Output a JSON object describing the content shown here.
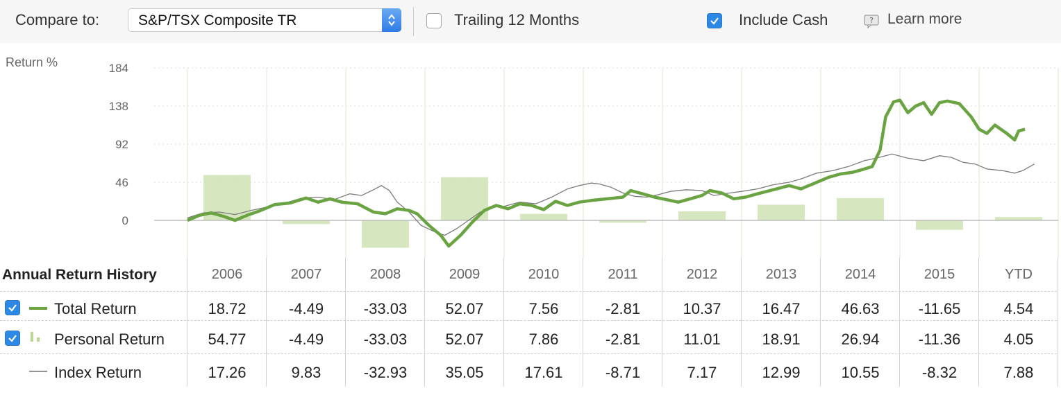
{
  "toolbar": {
    "compare_label": "Compare to:",
    "compare_value": "S&P/TSX Composite TR",
    "trailing_label": "Trailing 12 Months",
    "trailing_checked": false,
    "include_cash_label": "Include Cash",
    "include_cash_checked": true,
    "learn_more_label": "Learn more"
  },
  "chart_data": {
    "type": "line",
    "ylabel": "Return %",
    "yticks": [
      184,
      138,
      92,
      46,
      0
    ],
    "ylim": [
      -35,
      184
    ],
    "xlim": [
      2006,
      2016.7
    ],
    "grid": true,
    "colors": {
      "total": "#6aa342",
      "index": "#7a7a7a",
      "bars": "#cfe3b5"
    },
    "series": [
      {
        "name": "Total Return",
        "style": "thick green line",
        "points": [
          [
            2006.0,
            0
          ],
          [
            2006.15,
            6
          ],
          [
            2006.3,
            9
          ],
          [
            2006.45,
            5
          ],
          [
            2006.6,
            0
          ],
          [
            2006.75,
            6
          ],
          [
            2006.9,
            11
          ],
          [
            2007.1,
            19
          ],
          [
            2007.3,
            21
          ],
          [
            2007.5,
            27
          ],
          [
            2007.65,
            22
          ],
          [
            2007.8,
            26
          ],
          [
            2007.95,
            22
          ],
          [
            2008.15,
            20
          ],
          [
            2008.35,
            10
          ],
          [
            2008.5,
            8
          ],
          [
            2008.65,
            14
          ],
          [
            2008.8,
            12
          ],
          [
            2008.9,
            8
          ],
          [
            2009.05,
            -6
          ],
          [
            2009.2,
            -18
          ],
          [
            2009.3,
            -31
          ],
          [
            2009.45,
            -18
          ],
          [
            2009.6,
            -2
          ],
          [
            2009.75,
            12
          ],
          [
            2009.9,
            18
          ],
          [
            2010.05,
            14
          ],
          [
            2010.2,
            20
          ],
          [
            2010.35,
            18
          ],
          [
            2010.5,
            13
          ],
          [
            2010.65,
            23
          ],
          [
            2010.8,
            18
          ],
          [
            2010.95,
            22
          ],
          [
            2011.1,
            24
          ],
          [
            2011.3,
            26
          ],
          [
            2011.5,
            28
          ],
          [
            2011.6,
            36
          ],
          [
            2011.75,
            32
          ],
          [
            2011.9,
            28
          ],
          [
            2012.05,
            25
          ],
          [
            2012.2,
            22
          ],
          [
            2012.35,
            26
          ],
          [
            2012.5,
            30
          ],
          [
            2012.6,
            36
          ],
          [
            2012.75,
            33
          ],
          [
            2012.9,
            26
          ],
          [
            2013.05,
            28
          ],
          [
            2013.2,
            32
          ],
          [
            2013.4,
            37
          ],
          [
            2013.6,
            42
          ],
          [
            2013.75,
            38
          ],
          [
            2013.9,
            44
          ],
          [
            2014.1,
            52
          ],
          [
            2014.25,
            56
          ],
          [
            2014.4,
            58
          ],
          [
            2014.55,
            62
          ],
          [
            2014.65,
            65
          ],
          [
            2014.75,
            85
          ],
          [
            2014.82,
            125
          ],
          [
            2014.92,
            143
          ],
          [
            2015.0,
            145
          ],
          [
            2015.1,
            130
          ],
          [
            2015.2,
            138
          ],
          [
            2015.3,
            142
          ],
          [
            2015.4,
            128
          ],
          [
            2015.5,
            142
          ],
          [
            2015.6,
            144
          ],
          [
            2015.75,
            141
          ],
          [
            2015.9,
            125
          ],
          [
            2016.0,
            110
          ],
          [
            2016.1,
            105
          ],
          [
            2016.2,
            115
          ],
          [
            2016.35,
            105
          ],
          [
            2016.45,
            97
          ],
          [
            2016.5,
            108
          ],
          [
            2016.58,
            110
          ]
        ]
      },
      {
        "name": "Index Return",
        "style": "thin gray line",
        "points": [
          [
            2006.0,
            3
          ],
          [
            2006.2,
            9
          ],
          [
            2006.4,
            10
          ],
          [
            2006.6,
            7
          ],
          [
            2006.8,
            12
          ],
          [
            2006.95,
            15
          ],
          [
            2007.2,
            20
          ],
          [
            2007.45,
            27
          ],
          [
            2007.65,
            28
          ],
          [
            2007.85,
            25
          ],
          [
            2008.05,
            32
          ],
          [
            2008.2,
            30
          ],
          [
            2008.35,
            37
          ],
          [
            2008.45,
            42
          ],
          [
            2008.55,
            36
          ],
          [
            2008.65,
            22
          ],
          [
            2008.8,
            10
          ],
          [
            2008.95,
            -6
          ],
          [
            2009.15,
            -15
          ],
          [
            2009.25,
            -18
          ],
          [
            2009.4,
            -10
          ],
          [
            2009.55,
            0
          ],
          [
            2009.7,
            10
          ],
          [
            2009.85,
            16
          ],
          [
            2010.0,
            17
          ],
          [
            2010.2,
            22
          ],
          [
            2010.4,
            20
          ],
          [
            2010.6,
            28
          ],
          [
            2010.8,
            38
          ],
          [
            2010.95,
            42
          ],
          [
            2011.1,
            45
          ],
          [
            2011.2,
            44
          ],
          [
            2011.35,
            40
          ],
          [
            2011.5,
            33
          ],
          [
            2011.65,
            29
          ],
          [
            2011.8,
            28
          ],
          [
            2011.95,
            31
          ],
          [
            2012.1,
            35
          ],
          [
            2012.3,
            37
          ],
          [
            2012.5,
            36
          ],
          [
            2012.65,
            30
          ],
          [
            2012.85,
            33
          ],
          [
            2013.0,
            35
          ],
          [
            2013.2,
            38
          ],
          [
            2013.4,
            43
          ],
          [
            2013.6,
            46
          ],
          [
            2013.75,
            50
          ],
          [
            2013.95,
            57
          ],
          [
            2014.15,
            60
          ],
          [
            2014.35,
            65
          ],
          [
            2014.55,
            72
          ],
          [
            2014.7,
            75
          ],
          [
            2014.9,
            80
          ],
          [
            2015.1,
            75
          ],
          [
            2015.3,
            72
          ],
          [
            2015.5,
            78
          ],
          [
            2015.65,
            76
          ],
          [
            2015.8,
            70
          ],
          [
            2015.95,
            68
          ],
          [
            2016.1,
            62
          ],
          [
            2016.3,
            60
          ],
          [
            2016.45,
            57
          ],
          [
            2016.55,
            60
          ],
          [
            2016.7,
            68
          ]
        ]
      }
    ],
    "bars": {
      "name": "Personal Return",
      "categories": [
        "2006",
        "2007",
        "2008",
        "2009",
        "2010",
        "2011",
        "2012",
        "2013",
        "2014",
        "2015",
        "YTD"
      ],
      "values": [
        54.77,
        -4.49,
        -33.03,
        52.07,
        7.86,
        -2.81,
        11.01,
        18.91,
        26.94,
        -11.36,
        4.05
      ]
    }
  },
  "table": {
    "title": "Annual Return History",
    "columns": [
      "2006",
      "2007",
      "2008",
      "2009",
      "2010",
      "2011",
      "2012",
      "2013",
      "2014",
      "2015",
      "YTD"
    ],
    "rows": [
      {
        "label": "Total Return",
        "checked": true,
        "icon": "green-line-icon",
        "values": [
          "18.72",
          "-4.49",
          "-33.03",
          "52.07",
          "7.56",
          "-2.81",
          "10.37",
          "16.47",
          "46.63",
          "-11.65",
          "4.54"
        ]
      },
      {
        "label": "Personal Return",
        "checked": true,
        "icon": "bar-icon",
        "values": [
          "54.77",
          "-4.49",
          "-33.03",
          "52.07",
          "7.86",
          "-2.81",
          "11.01",
          "18.91",
          "26.94",
          "-11.36",
          "4.05"
        ]
      },
      {
        "label": "Index Return",
        "checked": false,
        "icon": "gray-line-icon",
        "values": [
          "17.26",
          "9.83",
          "-32.93",
          "35.05",
          "17.61",
          "-8.71",
          "7.17",
          "12.99",
          "10.55",
          "-8.32",
          "7.88"
        ]
      }
    ]
  }
}
